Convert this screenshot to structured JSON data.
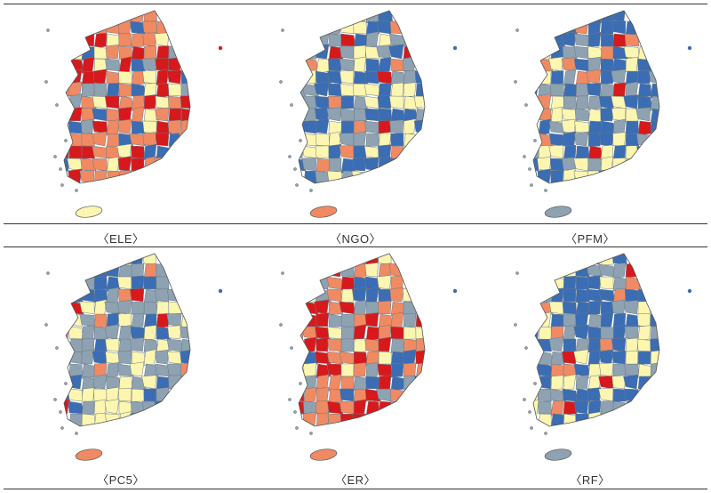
{
  "figure": {
    "panels": [
      {
        "label": "〈ELE〉",
        "dominant": "red"
      },
      {
        "label": "〈NGO〉",
        "dominant": "blue"
      },
      {
        "label": "〈PFM〉",
        "dominant": "blue"
      },
      {
        "label": "〈PC5〉",
        "dominant": "grey"
      },
      {
        "label": "〈ER〉",
        "dominant": "red"
      },
      {
        "label": "〈RF〉",
        "dominant": "blue"
      }
    ],
    "legend_colors": {
      "red": "#d7191c",
      "salmon": "#f08a63",
      "yellow": "#fdf6b0",
      "grey": "#8ea2b2",
      "blue": "#3a6db3"
    }
  }
}
